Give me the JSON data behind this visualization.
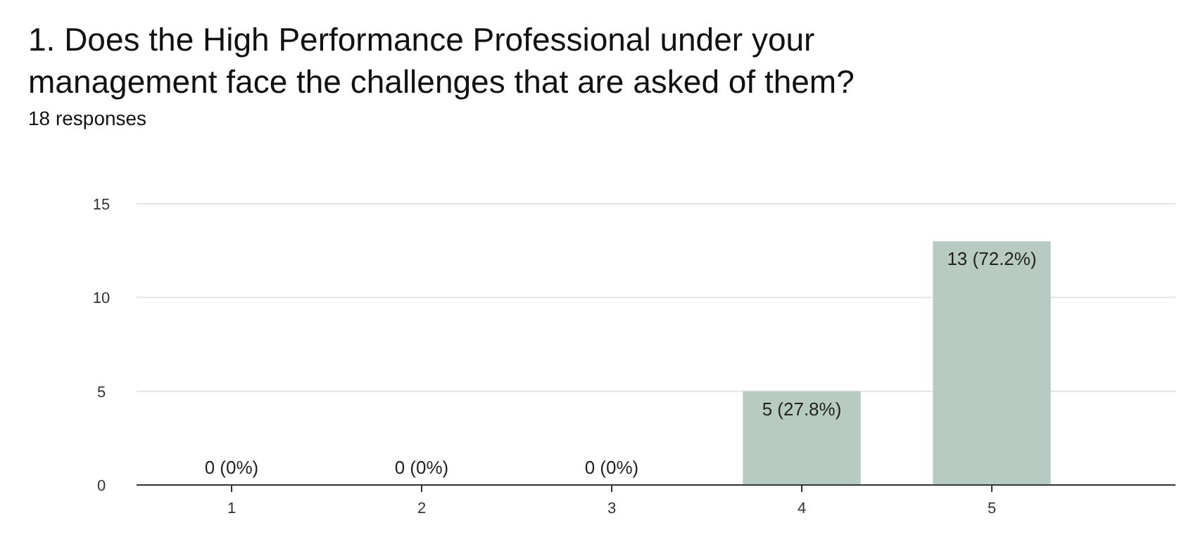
{
  "chart_data": {
    "type": "bar",
    "title": "1. Does the High Performance Professional under your management face the challenges that are asked of them?",
    "subtitle": "18 responses",
    "categories": [
      "1",
      "2",
      "3",
      "4",
      "5"
    ],
    "values": [
      0,
      0,
      0,
      5,
      13
    ],
    "value_labels": [
      "0 (0%)",
      "0 (0%)",
      "0 (0%)",
      "5 (27.8%)",
      "13 (72.2%)"
    ],
    "color": "#b8cbc3",
    "ylim": [
      0,
      15
    ],
    "yticks": [
      0,
      5,
      10,
      15
    ],
    "grid": "y"
  }
}
